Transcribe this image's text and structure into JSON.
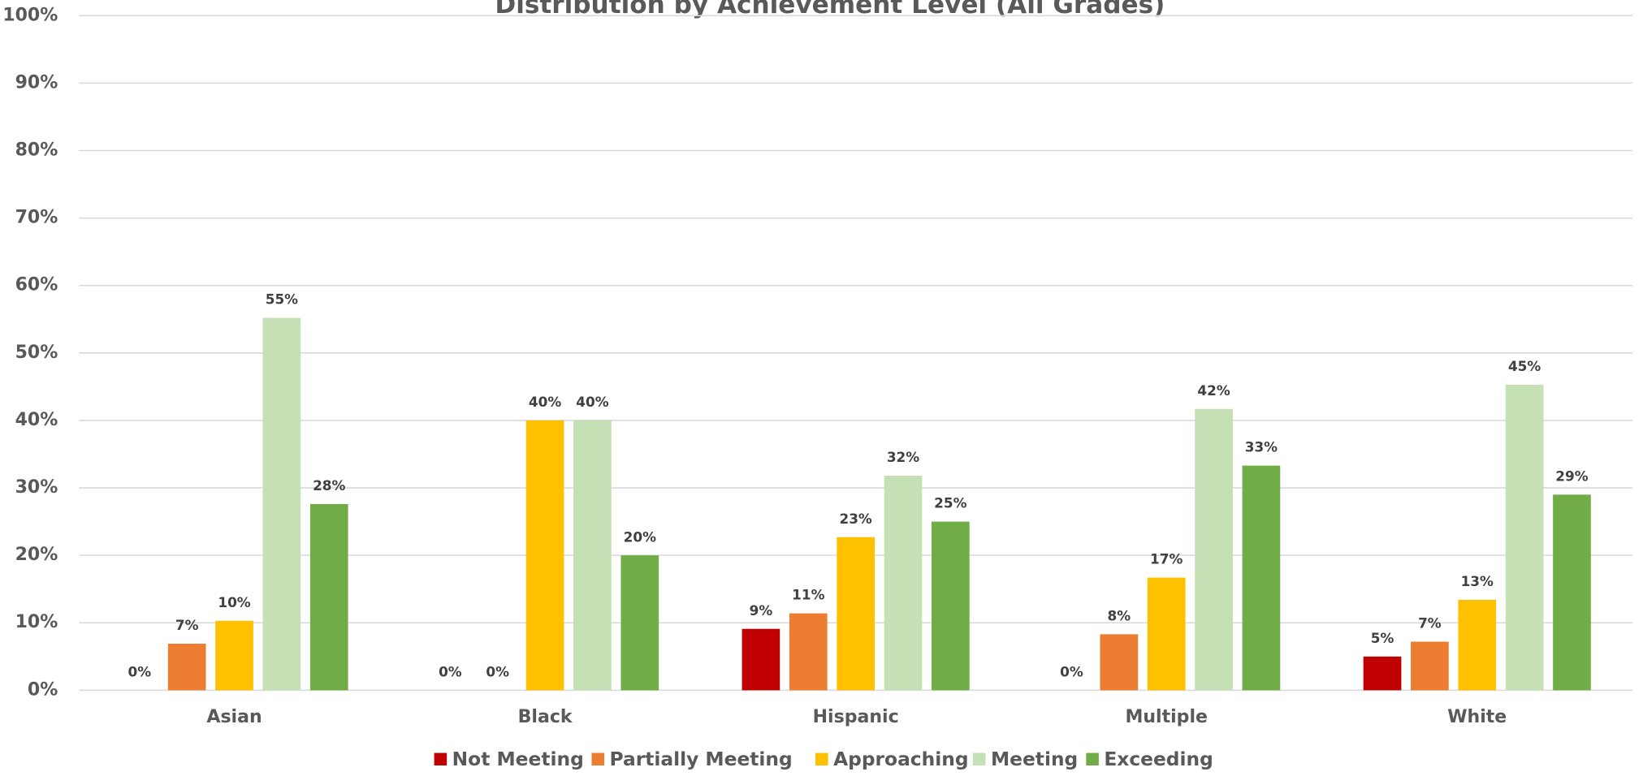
{
  "chart_data": {
    "type": "bar",
    "title": "Distribution by Achievement Level (All Grades)",
    "categories": [
      "Asian",
      "Black",
      "Hispanic",
      "Multiple",
      "White"
    ],
    "series": [
      {
        "name": "Not Meeting",
        "color": "#c00000",
        "values": [
          0,
          0,
          9.1,
          0,
          5
        ],
        "value_labels": [
          "0%",
          "0%",
          "9%",
          "0%",
          "5%"
        ]
      },
      {
        "name": "Partially Meeting",
        "color": "#ed7d31",
        "values": [
          6.9,
          0,
          11.4,
          8.3,
          7.2
        ],
        "value_labels": [
          "7%",
          "0%",
          "11%",
          "8%",
          "7%"
        ]
      },
      {
        "name": "Approaching",
        "color": "#ffc000",
        "values": [
          10.3,
          40,
          22.7,
          16.7,
          13.4
        ],
        "value_labels": [
          "10%",
          "40%",
          "23%",
          "17%",
          "13%"
        ]
      },
      {
        "name": "Meeting",
        "color": "#c5e0b4",
        "values": [
          55.2,
          40,
          31.8,
          41.7,
          45.3
        ],
        "value_labels": [
          "55%",
          "40%",
          "32%",
          "42%",
          "45%"
        ]
      },
      {
        "name": "Exceeding",
        "color": "#70ad47",
        "values": [
          27.6,
          20,
          25,
          33.3,
          29
        ],
        "value_labels": [
          "28%",
          "20%",
          "25%",
          "33%",
          "29%"
        ]
      }
    ],
    "ylim": [
      0,
      100
    ],
    "yticks": [
      {
        "value": 0,
        "label": "0%"
      },
      {
        "value": 10,
        "label": "10%"
      },
      {
        "value": 20,
        "label": "20%"
      },
      {
        "value": 30,
        "label": "30%"
      },
      {
        "value": 40,
        "label": "40%"
      },
      {
        "value": 50,
        "label": "50%"
      },
      {
        "value": 60,
        "label": "60%"
      },
      {
        "value": 70,
        "label": "70%"
      },
      {
        "value": 80,
        "label": "80%"
      },
      {
        "value": 90,
        "label": "90%"
      },
      {
        "value": 100,
        "label": "100%"
      }
    ],
    "grid": true,
    "legend": "bottom"
  }
}
